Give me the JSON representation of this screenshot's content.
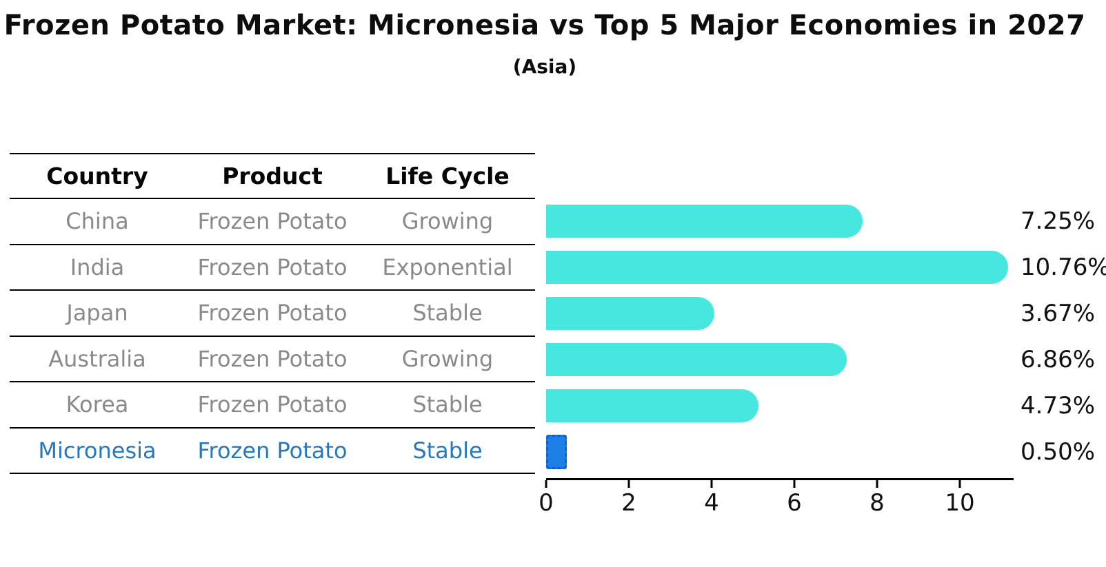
{
  "title": "Frozen Potato Market: Micronesia vs Top 5 Major Economies in 2027",
  "subtitle": "(Asia)",
  "table": {
    "headers": [
      "Country",
      "Product",
      "Life Cycle"
    ],
    "rows": [
      {
        "country": "China",
        "product": "Frozen Potato",
        "life_cycle": "Growing",
        "highlight": false
      },
      {
        "country": "India",
        "product": "Frozen Potato",
        "life_cycle": "Exponential",
        "highlight": false
      },
      {
        "country": "Japan",
        "product": "Frozen Potato",
        "life_cycle": "Stable",
        "highlight": false
      },
      {
        "country": "Australia",
        "product": "Frozen Potato",
        "life_cycle": "Growing",
        "highlight": false
      },
      {
        "country": "Korea",
        "product": "Frozen Potato",
        "life_cycle": "Stable",
        "highlight": false
      },
      {
        "country": "Micronesia",
        "product": "Frozen Potato",
        "life_cycle": "Stable",
        "highlight": true
      }
    ]
  },
  "chart_data": {
    "type": "bar",
    "orientation": "horizontal",
    "title": "Frozen Potato Market: Micronesia vs Top 5 Major Economies in 2027 (Asia)",
    "categories": [
      "China",
      "India",
      "Japan",
      "Australia",
      "Korea",
      "Micronesia"
    ],
    "values": [
      7.25,
      10.76,
      3.67,
      6.86,
      4.73,
      0.5
    ],
    "value_labels": [
      "7.25%",
      "10.76%",
      "3.67%",
      "6.86%",
      "4.73%",
      "0.50%"
    ],
    "x_ticks": [
      0,
      2,
      4,
      6,
      8,
      10
    ],
    "xlim": [
      0,
      11.3
    ],
    "grid": false,
    "legend": false,
    "highlight_category": "Micronesia",
    "colors": {
      "bar": "#47e6df",
      "highlight_bar": "#1e7fe8",
      "highlight_bar_border": "#1261cd",
      "highlight_text": "#2878be",
      "row_text": "#8a8a8a",
      "axis": "#000000",
      "label_text": "#111111"
    }
  }
}
